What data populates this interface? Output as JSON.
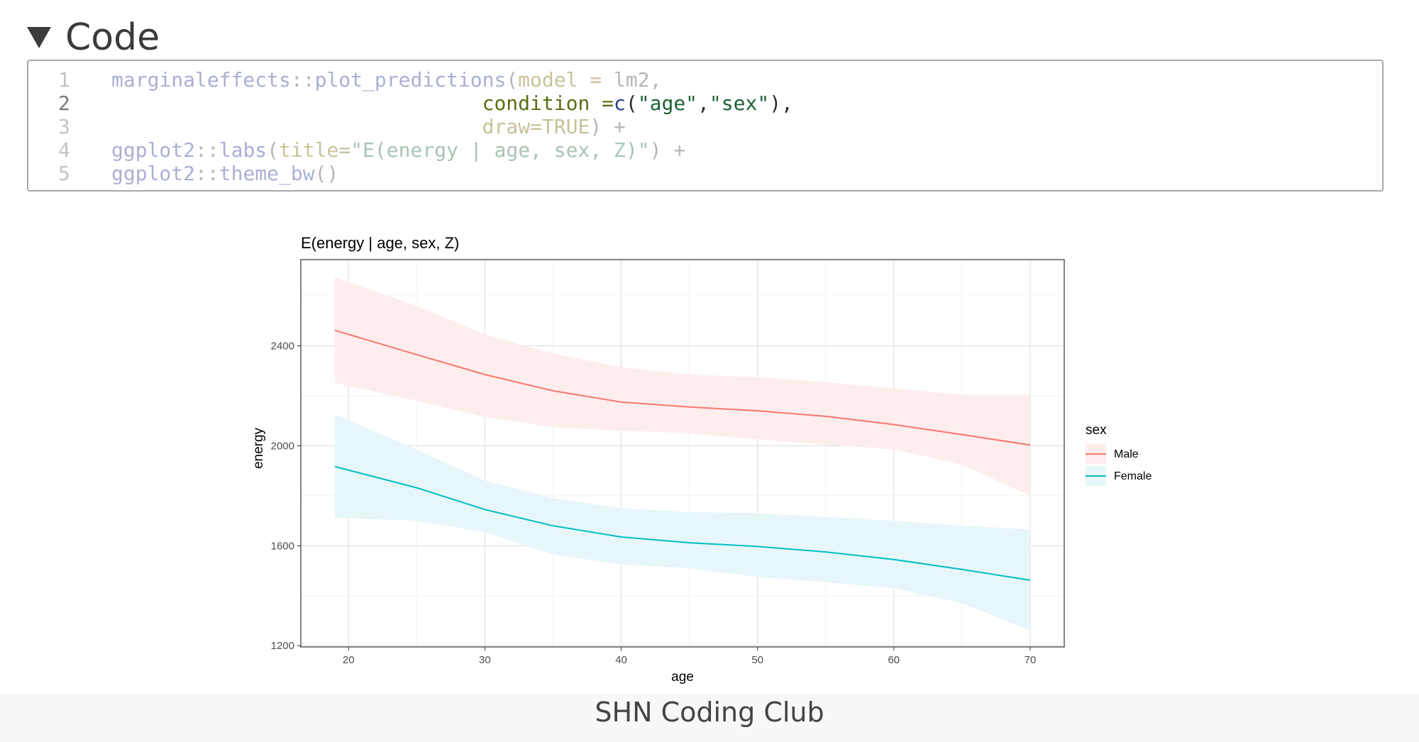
{
  "code_section": {
    "toggle_label": "Code",
    "lines": [
      {
        "num": "1",
        "active": false,
        "tokens": [
          {
            "t": "marginaleffects",
            "c": "dim-fn"
          },
          {
            "t": "::",
            "c": "dim-op"
          },
          {
            "t": "plot_predictions",
            "c": "dim-fn"
          },
          {
            "t": "(",
            "c": "dim-op"
          },
          {
            "t": "model = ",
            "c": "dim-arg"
          },
          {
            "t": "lm2,",
            "c": "dim-op"
          }
        ]
      },
      {
        "num": "2",
        "active": true,
        "tokens": [
          {
            "t": "                               ",
            "c": "act-op"
          },
          {
            "t": "condition =",
            "c": "act-arg"
          },
          {
            "t": "c",
            "c": "act-fn"
          },
          {
            "t": "(",
            "c": "act-op"
          },
          {
            "t": "\"age\"",
            "c": "act-str"
          },
          {
            "t": ",",
            "c": "act-op"
          },
          {
            "t": "\"sex\"",
            "c": "act-str"
          },
          {
            "t": "),",
            "c": "act-op"
          }
        ]
      },
      {
        "num": "3",
        "active": false,
        "tokens": [
          {
            "t": "                               ",
            "c": "dim-op"
          },
          {
            "t": "draw=TRUE",
            "c": "dim-arg"
          },
          {
            "t": ") +",
            "c": "dim-op"
          }
        ]
      },
      {
        "num": "4",
        "active": false,
        "tokens": [
          {
            "t": "ggplot2",
            "c": "dim-fn"
          },
          {
            "t": "::",
            "c": "dim-op"
          },
          {
            "t": "labs",
            "c": "dim-fn"
          },
          {
            "t": "(",
            "c": "dim-op"
          },
          {
            "t": "title=",
            "c": "dim-arg"
          },
          {
            "t": "\"E(energy | age, sex, Z)\"",
            "c": "dim-str"
          },
          {
            "t": ") +",
            "c": "dim-op"
          }
        ]
      },
      {
        "num": "5",
        "active": false,
        "tokens": [
          {
            "t": "ggplot2",
            "c": "dim-fn"
          },
          {
            "t": "::",
            "c": "dim-op"
          },
          {
            "t": "theme_bw",
            "c": "dim-fn"
          },
          {
            "t": "()",
            "c": "dim-op"
          }
        ]
      }
    ]
  },
  "chart_data": {
    "type": "line",
    "title": "E(energy | age, sex, Z)",
    "xlabel": "age",
    "ylabel": "energy",
    "xlim": [
      16.5,
      72.5
    ],
    "ylim": [
      1195,
      2745
    ],
    "xticks": [
      20,
      30,
      40,
      50,
      60,
      70
    ],
    "yticks": [
      1200,
      1600,
      2000,
      2400
    ],
    "grid": true,
    "legend": {
      "title": "sex",
      "position": "right"
    },
    "x": [
      19,
      25,
      30,
      35,
      40,
      45,
      50,
      55,
      60,
      65,
      70
    ],
    "series": [
      {
        "name": "Male",
        "color": "#F8766D",
        "fill": "#fdeeed",
        "values": [
          2462,
          2365,
          2285,
          2220,
          2175,
          2155,
          2140,
          2118,
          2085,
          2045,
          2003
        ],
        "lower": [
          2252,
          2180,
          2115,
          2075,
          2060,
          2050,
          2025,
          2005,
          1985,
          1925,
          1800
        ],
        "upper": [
          2675,
          2560,
          2445,
          2370,
          2315,
          2285,
          2275,
          2255,
          2230,
          2205,
          2205
        ]
      },
      {
        "name": "Female",
        "color": "#00BFC4",
        "fill": "#e7f6f8",
        "values": [
          1917,
          1832,
          1745,
          1680,
          1635,
          1612,
          1597,
          1575,
          1545,
          1505,
          1462
        ],
        "lower": [
          1712,
          1700,
          1655,
          1565,
          1525,
          1510,
          1475,
          1455,
          1430,
          1370,
          1262
        ],
        "upper": [
          2125,
          1985,
          1860,
          1790,
          1750,
          1735,
          1730,
          1715,
          1700,
          1680,
          1665
        ]
      }
    ]
  },
  "footer": {
    "text": "SHN Coding Club"
  }
}
